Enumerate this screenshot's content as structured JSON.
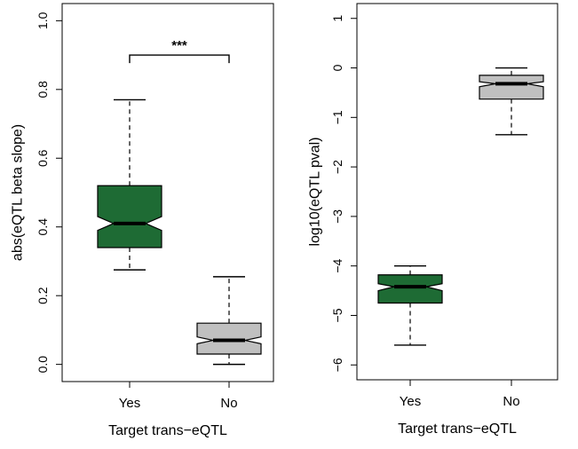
{
  "chart_data": [
    {
      "type": "box",
      "notched": true,
      "xlabel": "Target trans−eQTL",
      "ylabel": "abs(eQTL beta slope)",
      "categories": [
        "Yes",
        "No"
      ],
      "ylim": [
        -0.05,
        1.05
      ],
      "yticks": [
        0.0,
        0.2,
        0.4,
        0.6,
        0.8,
        1.0
      ],
      "ytick_labels": [
        "0.0",
        "0.2",
        "0.4",
        "0.6",
        "0.8",
        "1.0"
      ],
      "boxes": [
        {
          "category": "Yes",
          "whisker_low": 0.275,
          "q1": 0.34,
          "median": 0.41,
          "q3": 0.52,
          "whisker_high": 0.77,
          "notch_low": 0.39,
          "notch_high": 0.43,
          "color": "#1e6b34"
        },
        {
          "category": "No",
          "whisker_low": 0.0,
          "q1": 0.03,
          "median": 0.07,
          "q3": 0.12,
          "whisker_high": 0.255,
          "notch_low": 0.06,
          "notch_high": 0.08,
          "color": "#c0c0c0"
        }
      ],
      "annotation": {
        "text": "***",
        "between": [
          "Yes",
          "No"
        ],
        "y": 0.9
      }
    },
    {
      "type": "box",
      "notched": true,
      "xlabel": "Target trans−eQTL",
      "ylabel": "log10(eQTL pval)",
      "categories": [
        "Yes",
        "No"
      ],
      "ylim": [
        -6.3,
        1.3
      ],
      "yticks": [
        -6,
        -5,
        -4,
        -3,
        -2,
        -1,
        0,
        1
      ],
      "ytick_labels": [
        "−6",
        "−5",
        "−4",
        "−3",
        "−2",
        "−1",
        "0",
        "1"
      ],
      "boxes": [
        {
          "category": "Yes",
          "whisker_low": -5.6,
          "q1": -4.75,
          "median": -4.42,
          "q3": -4.18,
          "whisker_high": -4.0,
          "notch_low": -4.5,
          "notch_high": -4.36,
          "color": "#1e6b34"
        },
        {
          "category": "No",
          "whisker_low": -1.35,
          "q1": -0.63,
          "median": -0.32,
          "q3": -0.15,
          "whisker_high": 0.0,
          "notch_low": -0.38,
          "notch_high": -0.28,
          "color": "#c0c0c0"
        }
      ]
    }
  ]
}
